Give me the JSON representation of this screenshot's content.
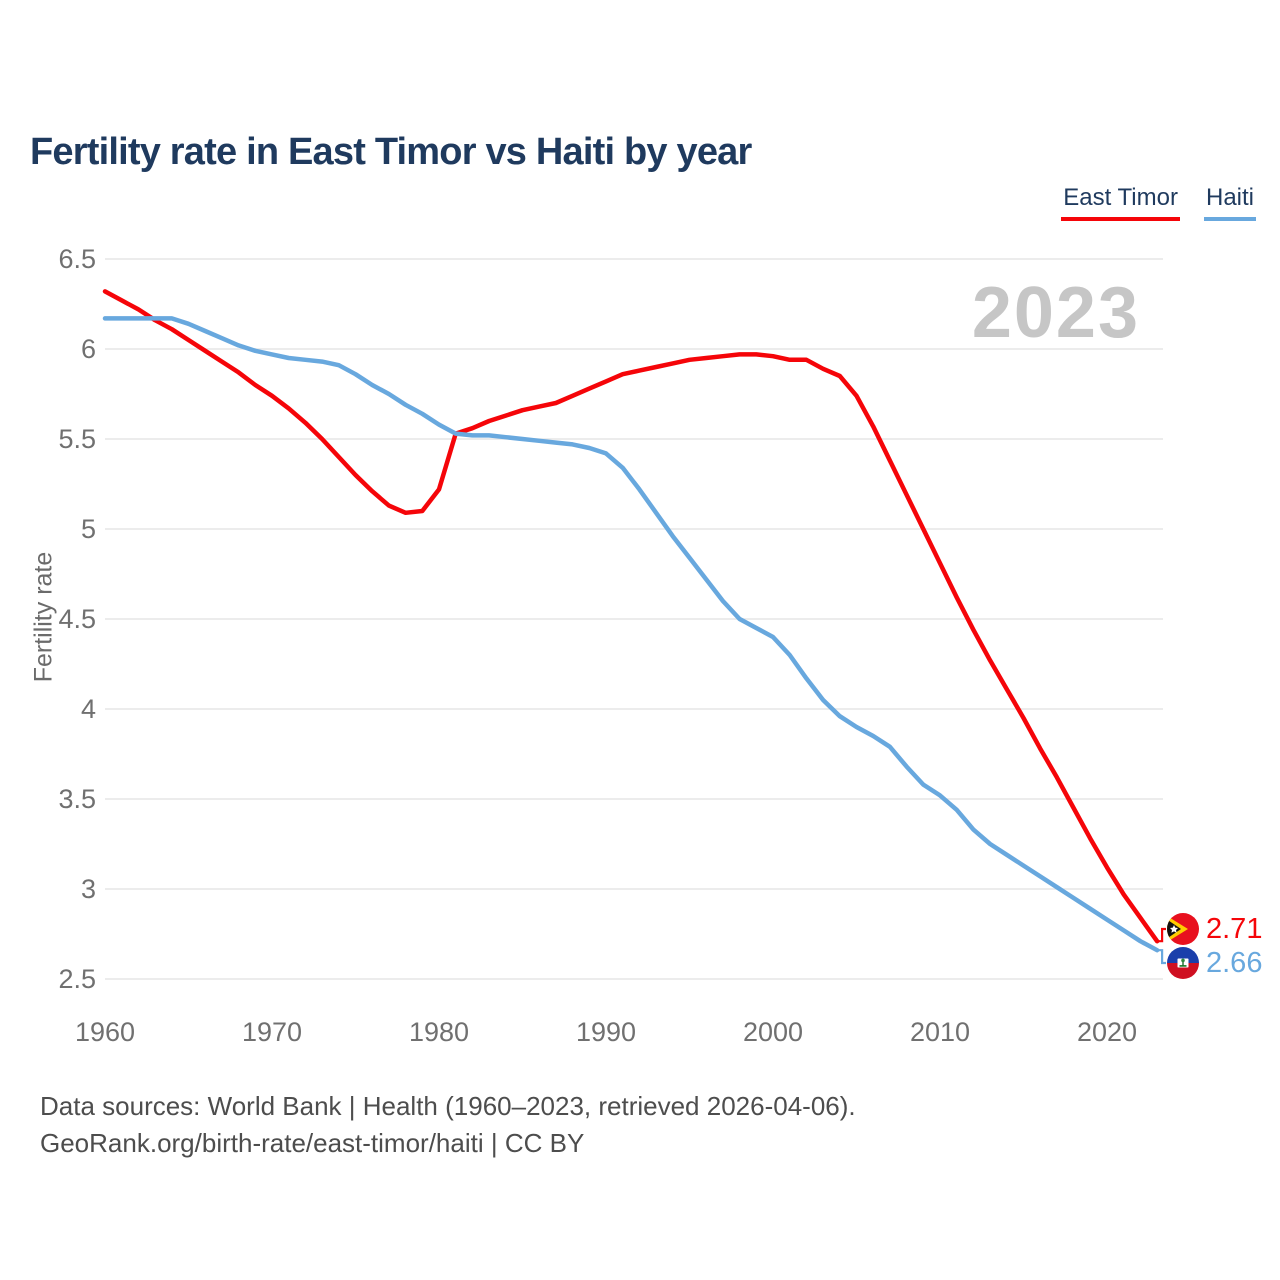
{
  "page": {
    "title": "Fertility rate in East Timor vs Haiti by year",
    "watermark": "2023",
    "footer_line1": "Data sources: World Bank | Health (1960–2023, retrieved 2026-04-06).",
    "footer_line2": "GeoRank.org/birth-rate/east-timor/haiti | CC BY"
  },
  "legend": [
    {
      "label": "East Timor",
      "color": "#f50509"
    },
    {
      "label": "Haiti",
      "color": "#68a8de"
    }
  ],
  "end_labels": [
    {
      "series": "East Timor",
      "value": "2.71",
      "flag": "east-timor-flag",
      "color": "#f50509"
    },
    {
      "series": "Haiti",
      "value": "2.66",
      "flag": "haiti-flag",
      "color": "#68a8de"
    }
  ],
  "chart_data": {
    "type": "line",
    "title": "Fertility rate in East Timor vs Haiti by year",
    "xlabel": "",
    "ylabel": "Fertility rate",
    "ylim": [
      2.5,
      6.5
    ],
    "xlim": [
      1960,
      2023
    ],
    "yticks": [
      6.5,
      6,
      5.5,
      5,
      4.5,
      4,
      3.5,
      3,
      2.5
    ],
    "xticks": [
      1960,
      1970,
      1980,
      1990,
      2000,
      2010,
      2020
    ],
    "grid": "horizontal",
    "legend_position": "top-right",
    "annotation": "2023",
    "x": [
      1960,
      1961,
      1962,
      1963,
      1964,
      1965,
      1966,
      1967,
      1968,
      1969,
      1970,
      1971,
      1972,
      1973,
      1974,
      1975,
      1976,
      1977,
      1978,
      1979,
      1980,
      1981,
      1982,
      1983,
      1984,
      1985,
      1986,
      1987,
      1988,
      1989,
      1990,
      1991,
      1992,
      1993,
      1994,
      1995,
      1996,
      1997,
      1998,
      1999,
      2000,
      2001,
      2002,
      2003,
      2004,
      2005,
      2006,
      2007,
      2008,
      2009,
      2010,
      2011,
      2012,
      2013,
      2014,
      2015,
      2016,
      2017,
      2018,
      2019,
      2020,
      2021,
      2022,
      2023
    ],
    "series": [
      {
        "name": "East Timor",
        "color": "#f50509",
        "end_value": 2.71,
        "values": [
          6.32,
          6.27,
          6.22,
          6.16,
          6.11,
          6.05,
          5.99,
          5.93,
          5.87,
          5.8,
          5.74,
          5.67,
          5.59,
          5.5,
          5.4,
          5.3,
          5.21,
          5.13,
          5.09,
          5.1,
          5.22,
          5.53,
          5.56,
          5.6,
          5.63,
          5.66,
          5.68,
          5.7,
          5.74,
          5.78,
          5.82,
          5.86,
          5.88,
          5.9,
          5.92,
          5.94,
          5.95,
          5.96,
          5.97,
          5.97,
          5.96,
          5.94,
          5.94,
          5.89,
          5.85,
          5.74,
          5.57,
          5.38,
          5.19,
          5.0,
          4.81,
          4.62,
          4.44,
          4.27,
          4.11,
          3.95,
          3.78,
          3.62,
          3.45,
          3.28,
          3.12,
          2.97,
          2.84,
          2.71
        ]
      },
      {
        "name": "Haiti",
        "color": "#68a8de",
        "end_value": 2.66,
        "values": [
          6.17,
          6.17,
          6.17,
          6.17,
          6.17,
          6.14,
          6.1,
          6.06,
          6.02,
          5.99,
          5.97,
          5.95,
          5.94,
          5.93,
          5.91,
          5.86,
          5.8,
          5.75,
          5.69,
          5.64,
          5.58,
          5.53,
          5.52,
          5.52,
          5.51,
          5.5,
          5.49,
          5.48,
          5.47,
          5.45,
          5.42,
          5.34,
          5.22,
          5.09,
          4.96,
          4.84,
          4.72,
          4.6,
          4.5,
          4.45,
          4.4,
          4.3,
          4.17,
          4.05,
          3.96,
          3.9,
          3.85,
          3.79,
          3.68,
          3.58,
          3.52,
          3.44,
          3.33,
          3.25,
          3.19,
          3.13,
          3.07,
          3.01,
          2.95,
          2.89,
          2.83,
          2.77,
          2.71,
          2.66
        ]
      }
    ]
  }
}
